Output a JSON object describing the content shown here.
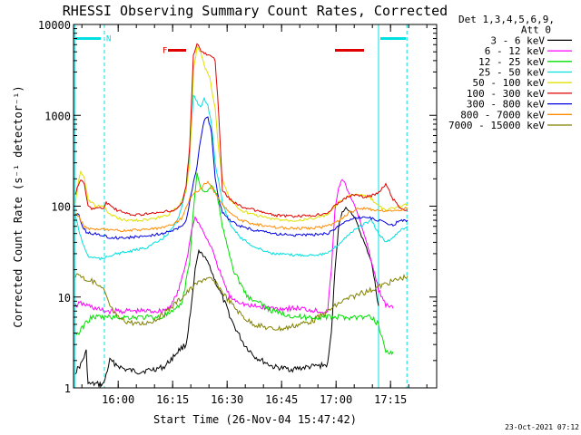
{
  "chart_data": {
    "type": "line",
    "title": "RHESSI Observing Summary Count Rates, Corrected",
    "xlabel": "Start Time (26-Nov-04 15:47:42)",
    "ylabel": "Corrected Count Rate (s⁻¹ detector⁻¹)",
    "footer": "23-Oct-2021 07:12",
    "x_unit": "minutes after 15:47:42",
    "xlim": [
      0,
      100
    ],
    "ylim": [
      1,
      10000
    ],
    "yscale": "log",
    "xticks": [
      {
        "x": 12.3,
        "label": "16:00"
      },
      {
        "x": 27.3,
        "label": "16:15"
      },
      {
        "x": 42.3,
        "label": "16:30"
      },
      {
        "x": 57.3,
        "label": "16:45"
      },
      {
        "x": 72.3,
        "label": "17:00"
      },
      {
        "x": 87.3,
        "label": "17:15"
      }
    ],
    "yticks": [
      {
        "y": 1,
        "label": "1"
      },
      {
        "y": 10,
        "label": "10"
      },
      {
        "y": 100,
        "label": "100"
      },
      {
        "y": 1000,
        "label": "1000"
      },
      {
        "y": 10000,
        "label": "10000"
      }
    ],
    "legend": {
      "placement": "right",
      "header": [
        "Det 1,3,4,5,6,9,",
        "Att 0"
      ],
      "entries": [
        {
          "label": "3 - 6 keV",
          "color": "#000000"
        },
        {
          "label": "6 - 12 keV",
          "color": "#ff00ff"
        },
        {
          "label": "12 - 25 keV",
          "color": "#00e000"
        },
        {
          "label": "25 - 50 keV",
          "color": "#00e0e0"
        },
        {
          "label": "50 - 100 keV",
          "color": "#e0e000"
        },
        {
          "label": "100 - 300 keV",
          "color": "#e00000"
        },
        {
          "label": "300 - 800 keV",
          "color": "#0000e0"
        },
        {
          "label": "800 - 7000 keV",
          "color": "#ff8c00"
        },
        {
          "label": "7000 - 15000 keV",
          "color": "#808000"
        }
      ]
    },
    "annotations": [
      {
        "text": "N",
        "x": 9,
        "y": 7000,
        "color": "#00e0e0"
      },
      {
        "text": "F",
        "x": 24.5,
        "y": 5200,
        "color": "#e00000"
      }
    ],
    "flag_bars": [
      {
        "name": "night",
        "color": "#00e0e0",
        "y": 7000,
        "x": [
          0.5,
          7.5
        ]
      },
      {
        "name": "night",
        "color": "#00e0e0",
        "y": 7000,
        "x": [
          84.5,
          91.5
        ]
      },
      {
        "name": "flare",
        "color": "#e00000",
        "y": 5200,
        "x": [
          26,
          31
        ]
      },
      {
        "name": "flare",
        "color": "#e00000",
        "y": 5200,
        "x": [
          72,
          80
        ]
      }
    ],
    "shading_lines": [
      {
        "x": 0.3,
        "style": "solid"
      },
      {
        "x": 8.5,
        "style": "dashed"
      },
      {
        "x": 84,
        "style": "solid"
      },
      {
        "x": 91.8,
        "style": "dashed"
      }
    ],
    "series": [
      {
        "name": "3 - 6 keV",
        "color": "#000000",
        "x": [
          0.5,
          2,
          3.5,
          4,
          8.3,
          10,
          14,
          18,
          22,
          25,
          27.5,
          29,
          31,
          32.5,
          33.5,
          34.5,
          36,
          37.5,
          39,
          41,
          44,
          47,
          50,
          55,
          60,
          65,
          70,
          71,
          72,
          73,
          74,
          75,
          76,
          77,
          78,
          80,
          82,
          84
        ],
        "y": [
          1.5,
          1.8,
          2.5,
          1.1,
          1.1,
          2.0,
          1.6,
          1.5,
          1.6,
          1.7,
          2.2,
          2.6,
          3.0,
          8,
          20,
          32,
          28,
          22,
          15,
          10,
          5,
          3,
          2.2,
          1.7,
          1.6,
          1.7,
          1.8,
          4,
          20,
          60,
          85,
          95,
          90,
          80,
          65,
          40,
          25,
          8
        ]
      },
      {
        "name": "6 - 12 keV",
        "color": "#ff00ff",
        "x": [
          0.5,
          2,
          4,
          8.3,
          12,
          18,
          24,
          26,
          27.5,
          29,
          30.5,
          31.5,
          32.5,
          33.5,
          35,
          36.5,
          38,
          40,
          43,
          48,
          55,
          62,
          68,
          70,
          71,
          72,
          73,
          74,
          75,
          76,
          78,
          80,
          82,
          84,
          86,
          88
        ],
        "y": [
          8,
          8.5,
          8,
          7,
          7,
          7,
          7,
          7.5,
          9,
          12,
          20,
          30,
          55,
          75,
          60,
          45,
          35,
          20,
          10,
          8,
          7.5,
          7.5,
          7,
          7,
          20,
          90,
          160,
          200,
          170,
          130,
          90,
          50,
          25,
          12,
          8,
          7.5
        ]
      },
      {
        "name": "12 - 25 keV",
        "color": "#00e000",
        "x": [
          0.5,
          1.5,
          3,
          5,
          8.3,
          12,
          18,
          24,
          28,
          30,
          32,
          33,
          34,
          35,
          36.5,
          38,
          39.5,
          41,
          44,
          48,
          55,
          62,
          68,
          70,
          72,
          75,
          78,
          80,
          82,
          84,
          86,
          88
        ],
        "y": [
          4,
          4,
          5,
          6,
          6,
          6,
          6,
          6,
          7,
          9,
          25,
          90,
          230,
          160,
          140,
          165,
          135,
          60,
          20,
          10,
          7,
          6,
          6,
          6,
          6,
          6,
          6,
          6,
          6,
          5,
          2.5,
          2.5
        ]
      },
      {
        "name": "25 - 50 keV",
        "color": "#00e0e0",
        "x": [
          0.5,
          1,
          2,
          3,
          4,
          6,
          8.3,
          9,
          12,
          16,
          20,
          24,
          27,
          29,
          31,
          32,
          33,
          34,
          35,
          36,
          37,
          38,
          39,
          41,
          43,
          46,
          50,
          55,
          60,
          65,
          70,
          73,
          76,
          79,
          82,
          84,
          86,
          88,
          90,
          92
        ],
        "y": [
          80,
          65,
          45,
          35,
          28,
          27,
          26,
          28,
          30,
          32,
          35,
          42,
          55,
          75,
          150,
          400,
          1700,
          1400,
          1200,
          1500,
          1300,
          800,
          300,
          110,
          65,
          45,
          35,
          30,
          29,
          29,
          30,
          38,
          50,
          60,
          70,
          50,
          40,
          45,
          55,
          60
        ]
      },
      {
        "name": "50 - 100 keV",
        "color": "#e0e000",
        "x": [
          0.5,
          1,
          2,
          3,
          4,
          6,
          8.3,
          10,
          14,
          18,
          22,
          26,
          29,
          31,
          32,
          33,
          34,
          35,
          36,
          37.5,
          39,
          40,
          41,
          43,
          46,
          50,
          55,
          60,
          65,
          70,
          73,
          76,
          79,
          82,
          84,
          86,
          88,
          90,
          92
        ],
        "y": [
          110,
          150,
          250,
          200,
          120,
          100,
          100,
          80,
          70,
          70,
          72,
          80,
          100,
          150,
          300,
          3000,
          5500,
          5000,
          3500,
          2600,
          1200,
          400,
          200,
          120,
          90,
          80,
          72,
          70,
          72,
          80,
          110,
          130,
          135,
          120,
          100,
          90,
          95,
          100,
          105
        ]
      },
      {
        "name": "100 - 300 keV",
        "color": "#e00000",
        "x": [
          0.5,
          1,
          2,
          3,
          4,
          5,
          8.3,
          9,
          12,
          16,
          20,
          24,
          28,
          30,
          31,
          32,
          33,
          34,
          35,
          36,
          37,
          38,
          39,
          40,
          41,
          43,
          46,
          50,
          55,
          60,
          65,
          70,
          73,
          76,
          78,
          80,
          82,
          84,
          86,
          88,
          90,
          92
        ],
        "y": [
          130,
          160,
          200,
          170,
          100,
          95,
          95,
          110,
          90,
          80,
          82,
          85,
          90,
          110,
          170,
          450,
          4500,
          6300,
          5200,
          4800,
          4600,
          4400,
          4100,
          1000,
          150,
          120,
          100,
          90,
          80,
          77,
          78,
          85,
          110,
          130,
          135,
          125,
          130,
          140,
          175,
          120,
          95,
          90
        ]
      },
      {
        "name": "300 - 800 keV",
        "color": "#0000e0",
        "x": [
          0.5,
          1.5,
          2.5,
          3.5,
          5,
          8.3,
          10,
          14,
          18,
          22,
          26,
          28,
          30,
          31,
          32,
          33,
          34,
          35,
          36,
          37,
          38,
          39,
          40,
          41,
          43,
          46,
          50,
          55,
          60,
          65,
          70,
          73,
          76,
          78,
          80,
          82,
          84,
          86,
          88,
          90,
          92
        ],
        "y": [
          80,
          80,
          60,
          52,
          50,
          48,
          45,
          45,
          46,
          48,
          52,
          55,
          60,
          70,
          110,
          180,
          280,
          550,
          900,
          950,
          650,
          200,
          120,
          85,
          70,
          60,
          54,
          50,
          48,
          48,
          50,
          60,
          72,
          75,
          76,
          74,
          70,
          65,
          62,
          70,
          70
        ]
      },
      {
        "name": "800 - 7000 keV",
        "color": "#ff8c00",
        "x": [
          0.5,
          1.5,
          3,
          4,
          6,
          8.3,
          10,
          14,
          18,
          22,
          26,
          28,
          30,
          31,
          32,
          33,
          34,
          35,
          36,
          37,
          38,
          39,
          40,
          41,
          43,
          46,
          50,
          55,
          60,
          65,
          70,
          73,
          76,
          78,
          80,
          82,
          84,
          86,
          88,
          90,
          92
        ],
        "y": [
          85,
          75,
          60,
          57,
          55,
          55,
          54,
          54,
          55,
          56,
          60,
          65,
          75,
          95,
          120,
          135,
          145,
          155,
          175,
          185,
          160,
          140,
          120,
          105,
          85,
          70,
          63,
          59,
          57,
          57,
          60,
          70,
          85,
          92,
          95,
          92,
          90,
          88,
          90,
          92,
          95
        ]
      },
      {
        "name": "7000 - 15000 keV",
        "color": "#808000",
        "x": [
          0.5,
          1.5,
          3,
          5,
          7,
          8.3,
          9,
          10,
          12,
          14,
          18,
          22,
          25,
          28,
          30,
          32,
          34,
          36,
          38,
          40,
          42,
          44,
          46,
          48,
          50,
          54,
          58,
          62,
          66,
          70,
          74,
          78,
          82,
          84,
          86,
          88,
          90,
          92
        ],
        "y": [
          17,
          18,
          16,
          15,
          13,
          12,
          10,
          8,
          6,
          5.5,
          5,
          5.5,
          6.5,
          8.5,
          10,
          12,
          14,
          16,
          15.5,
          13,
          10,
          8,
          6.5,
          5.5,
          5,
          4.5,
          4.5,
          5,
          5.5,
          7,
          9,
          10.5,
          12,
          13,
          14,
          15,
          16,
          17
        ]
      }
    ]
  }
}
